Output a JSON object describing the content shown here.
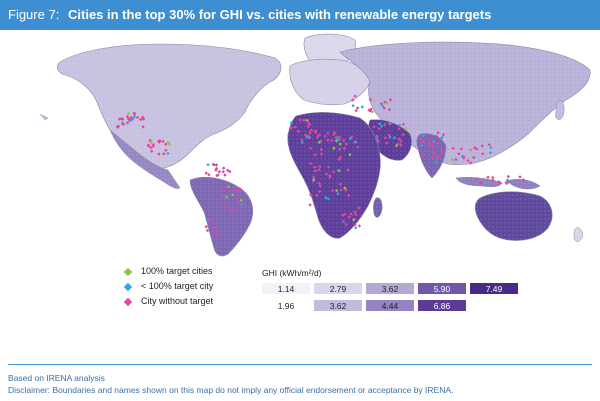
{
  "header": {
    "figure_number": "Figure 7:",
    "title": "Cities in the top 30% for GHI vs. cities with renewable energy targets",
    "background": "#3d8fd1"
  },
  "legend": {
    "points": [
      {
        "label": "100% target cities",
        "color": "#8cc63f"
      },
      {
        "label": "< 100% target city",
        "color": "#29abe2"
      },
      {
        "label": "City without target",
        "color": "#e0479e"
      }
    ],
    "ghi_title": "GHI (kWh/m²/d)",
    "ghi_classes": [
      {
        "value": "1.14",
        "color": "#f3f2f9"
      },
      {
        "value": "2.79",
        "color": "#d9d5ea"
      },
      {
        "value": "3.62",
        "color": "#b3a9d4"
      },
      {
        "value": "5.90",
        "color": "#6f58a8"
      },
      {
        "value": "7.49",
        "color": "#4b2a86"
      },
      {
        "value": "1.96",
        "color": "#ffffff"
      },
      {
        "value": "3.62",
        "color": "#c3bbdd"
      },
      {
        "value": "4.44",
        "color": "#9484c2"
      },
      {
        "value": "6.86",
        "color": "#5b3b96"
      }
    ]
  },
  "footer": {
    "source": "Based on IRENA analysis",
    "disclaimer": "Disclaimer: Boundaries and names shown on this map do not imply any official endorsement or acceptance by IRENA."
  }
}
